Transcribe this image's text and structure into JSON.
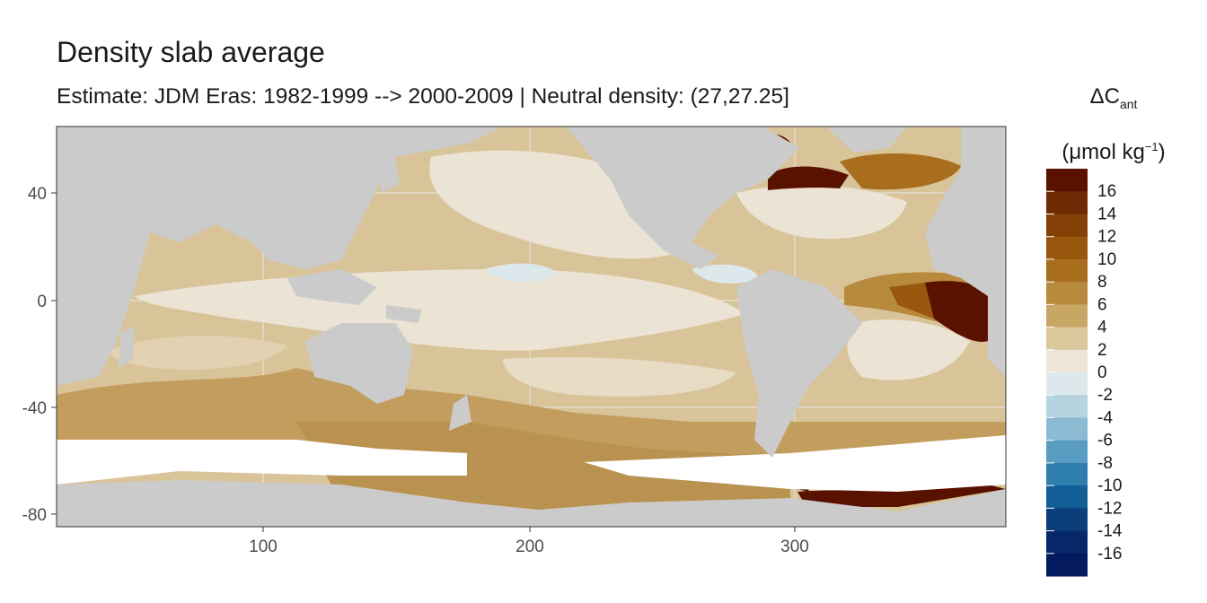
{
  "title": "Density slab average",
  "subtitle": "Estimate: JDM Eras: 1982-1999 --> 2000-2009 | Neutral density: (27,27.25]",
  "legend": {
    "symbol": "ΔC",
    "subscript": "ant",
    "unit": "μmol kg",
    "unit_exponent": "−1",
    "open_paren": "(",
    "close_paren": ")",
    "labels": [
      "16",
      "14",
      "12",
      "10",
      "8",
      "6",
      "4",
      "2",
      "0",
      "-2",
      "-4",
      "-6",
      "-8",
      "-10",
      "-12",
      "-14",
      "-16"
    ],
    "colors": [
      "#5a1200",
      "#6e2a02",
      "#844006",
      "#98570c",
      "#a86e1e",
      "#b88a3e",
      "#c8a664",
      "#dac89c",
      "#ede6d8",
      "#dde8ec",
      "#b6d3e0",
      "#8cbad3",
      "#5a9dc2",
      "#2f7fae",
      "#125f98",
      "#0a3f7c",
      "#06286a",
      "#041a5e"
    ]
  },
  "axes": {
    "x_ticks": [
      "100",
      "200",
      "300"
    ],
    "y_ticks": [
      "40",
      "0",
      "-40",
      "-80"
    ],
    "x_tick_values": [
      100,
      200,
      300
    ],
    "y_tick_values": [
      40,
      0,
      -40,
      -80
    ],
    "xlim": [
      20,
      380
    ],
    "ylim": [
      -85,
      65
    ]
  },
  "colors": {
    "land": "#cbcbcb",
    "ice": "#ffffff",
    "grid": "#ebebeb"
  }
}
